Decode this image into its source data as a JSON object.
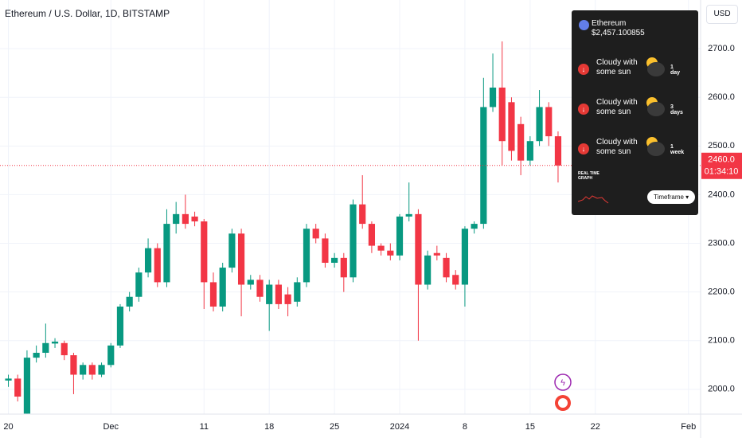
{
  "chart_data": {
    "type": "candlestick",
    "title": "Ethereum / U.S. Dollar, 1D, BITSTAMP",
    "x": [
      0,
      1,
      2,
      3,
      4,
      5,
      6,
      7,
      8,
      9,
      10,
      11,
      12,
      13,
      14,
      15,
      16,
      17,
      18,
      19,
      20,
      21,
      22,
      23,
      24,
      25,
      26,
      27,
      28,
      29,
      30,
      31,
      32,
      33,
      34,
      35,
      36,
      37,
      38,
      39,
      40,
      41,
      42,
      43,
      44,
      45,
      46,
      47,
      48,
      49,
      50,
      51,
      52,
      53,
      54,
      55,
      56,
      57,
      58,
      59
    ],
    "open": [
      2018,
      2022,
      1950,
      2065,
      2075,
      2094,
      2095,
      2070,
      2030,
      2050,
      2030,
      2050,
      2090,
      2170,
      2190,
      2240,
      2290,
      2220,
      2340,
      2360,
      2355,
      2345,
      2220,
      2170,
      2250,
      2320,
      2215,
      2225,
      2175,
      2215,
      2195,
      2180,
      2220,
      2330,
      2310,
      2260,
      2270,
      2230,
      2380,
      2340,
      2295,
      2285,
      2275,
      2355,
      2360,
      2215,
      2280,
      2270,
      2235,
      2215,
      2330,
      2340,
      2580,
      2620,
      2590,
      2545,
      2470,
      2510,
      2580,
      2520
    ],
    "high": [
      2030,
      2030,
      2080,
      2090,
      2135,
      2105,
      2100,
      2075,
      2055,
      2055,
      2055,
      2095,
      2175,
      2200,
      2250,
      2310,
      2300,
      2370,
      2385,
      2400,
      2365,
      2350,
      2240,
      2260,
      2330,
      2330,
      2235,
      2235,
      2225,
      2225,
      2210,
      2230,
      2340,
      2340,
      2320,
      2280,
      2280,
      2390,
      2440,
      2345,
      2300,
      2300,
      2360,
      2425,
      2370,
      2285,
      2295,
      2280,
      2245,
      2335,
      2345,
      2640,
      2690,
      2715,
      2600,
      2560,
      2520,
      2615,
      2590,
      2530
    ],
    "low": [
      2005,
      1975,
      1950,
      2055,
      2065,
      2085,
      2060,
      1990,
      2020,
      2020,
      2025,
      2045,
      2085,
      2160,
      2180,
      2230,
      2210,
      2210,
      2320,
      2330,
      2335,
      2165,
      2160,
      2160,
      2240,
      2150,
      2205,
      2180,
      2120,
      2165,
      2150,
      2170,
      2210,
      2300,
      2250,
      2250,
      2200,
      2220,
      2330,
      2280,
      2275,
      2265,
      2265,
      2345,
      2100,
      2205,
      2265,
      2220,
      2205,
      2170,
      2320,
      2330,
      2570,
      2460,
      2470,
      2440,
      2460,
      2500,
      2500,
      2425
    ],
    "close": [
      2022,
      1985,
      2065,
      2075,
      2095,
      2098,
      2070,
      2030,
      2050,
      2030,
      2050,
      2090,
      2170,
      2190,
      2240,
      2290,
      2220,
      2340,
      2360,
      2340,
      2345,
      2220,
      2170,
      2250,
      2320,
      2215,
      2225,
      2190,
      2215,
      2175,
      2175,
      2220,
      2330,
      2310,
      2260,
      2270,
      2230,
      2380,
      2340,
      2295,
      2285,
      2275,
      2355,
      2360,
      2215,
      2275,
      2275,
      2230,
      2215,
      2330,
      2340,
      2580,
      2620,
      2510,
      2490,
      2470,
      2510,
      2580,
      2520,
      2460
    ],
    "up_color": "#089981",
    "down_color": "#f23645",
    "xlim": [
      -0.9,
      74.3
    ],
    "xticks": [
      {
        "value": 0,
        "label": "20"
      },
      {
        "value": 11,
        "label": "Dec"
      },
      {
        "value": 21,
        "label": "11"
      },
      {
        "value": 28,
        "label": "18"
      },
      {
        "value": 35,
        "label": "25"
      },
      {
        "value": 42,
        "label": "2024"
      },
      {
        "value": 49,
        "label": "8"
      },
      {
        "value": 56,
        "label": "15"
      },
      {
        "value": 63,
        "label": "22"
      },
      {
        "value": 73,
        "label": "Feb"
      }
    ],
    "ylim": [
      1949,
      2800
    ],
    "yticks": [
      {
        "value": 2000,
        "label": "2000.0"
      },
      {
        "value": 2100,
        "label": "2100.0"
      },
      {
        "value": 2200,
        "label": "2200.0"
      },
      {
        "value": 2300,
        "label": "2300.0"
      },
      {
        "value": 2400,
        "label": "2400.0"
      },
      {
        "value": 2500,
        "label": "2500.0"
      },
      {
        "value": 2600,
        "label": "2600.0"
      },
      {
        "value": 2700,
        "label": "2700.0"
      }
    ],
    "grid": true,
    "last_price": {
      "value": 2460,
      "label": "2460.0"
    },
    "countdown": "01:34:10",
    "currency": "USD"
  },
  "widget": {
    "asset": "Ethereum",
    "price": "$2,457.100855",
    "forecasts": [
      {
        "text": "Cloudy with some sun",
        "period": "1 day"
      },
      {
        "text": "Cloudy with some sun",
        "period": "3 days"
      },
      {
        "text": "Cloudy with some sun",
        "period": "1 week"
      }
    ],
    "graph_label": "REAL TIME GRAPH",
    "button": "Timeframe"
  }
}
